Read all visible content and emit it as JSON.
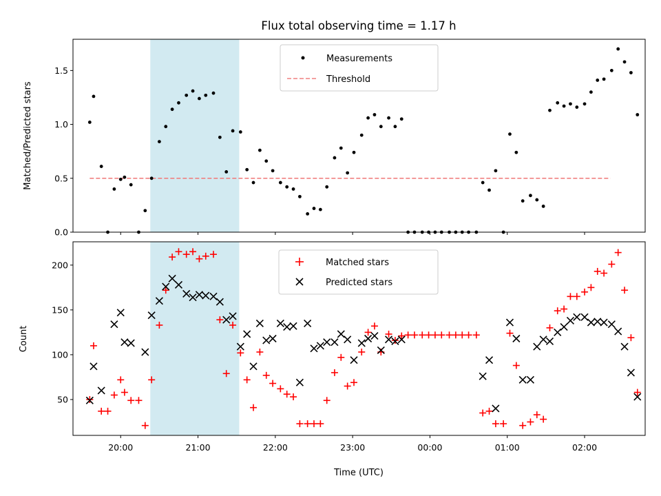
{
  "figure": {
    "title": "Flux total observing time = 1.17 h"
  },
  "colors": {
    "measurement": "#000000",
    "threshold": "#f08080",
    "matched": "#ff0000",
    "predicted": "#000000",
    "highlight": "#add8e6"
  },
  "chart_data": [
    {
      "type": "scatter",
      "panel": "top",
      "ylabel": "Matched/Predicted stars",
      "xlabel": "",
      "ylim": [
        0,
        1.79
      ],
      "yticks": [
        0.0,
        0.5,
        1.0,
        1.5
      ],
      "ytick_labels": [
        "0.0",
        "0.5",
        "1.0",
        "1.5"
      ],
      "xlim": [
        "19:23",
        "02:47"
      ],
      "xticks": [
        "20:00",
        "21:00",
        "22:00",
        "23:00",
        "00:00",
        "01:00",
        "02:00"
      ],
      "highlight_span": [
        "20:23",
        "21:32"
      ],
      "legend": {
        "position": "top-center",
        "entries": [
          "Measurements",
          "Threshold"
        ]
      },
      "threshold": {
        "name": "Threshold",
        "y": 0.5,
        "x": [
          "19:36",
          "02:20"
        ]
      },
      "series": [
        {
          "name": "Measurements",
          "marker": "dot",
          "points": [
            [
              "19:36",
              1.02
            ],
            [
              "19:39",
              1.26
            ],
            [
              "19:45",
              0.61
            ],
            [
              "19:50",
              0.0
            ],
            [
              "19:55",
              0.4
            ],
            [
              "20:00",
              0.49
            ],
            [
              "20:03",
              0.51
            ],
            [
              "20:08",
              0.44
            ],
            [
              "20:14",
              0.0
            ],
            [
              "20:19",
              0.2
            ],
            [
              "20:24",
              0.5
            ],
            [
              "20:30",
              0.84
            ],
            [
              "20:35",
              0.98
            ],
            [
              "20:40",
              1.14
            ],
            [
              "20:45",
              1.2
            ],
            [
              "20:51",
              1.27
            ],
            [
              "20:56",
              1.31
            ],
            [
              "21:01",
              1.24
            ],
            [
              "21:06",
              1.27
            ],
            [
              "21:12",
              1.29
            ],
            [
              "21:17",
              0.88
            ],
            [
              "21:22",
              0.56
            ],
            [
              "21:27",
              0.94
            ],
            [
              "21:33",
              0.93
            ],
            [
              "21:38",
              0.58
            ],
            [
              "21:43",
              0.46
            ],
            [
              "21:48",
              0.76
            ],
            [
              "21:53",
              0.66
            ],
            [
              "21:58",
              0.57
            ],
            [
              "22:04",
              0.46
            ],
            [
              "22:09",
              0.42
            ],
            [
              "22:14",
              0.4
            ],
            [
              "22:19",
              0.33
            ],
            [
              "22:25",
              0.17
            ],
            [
              "22:30",
              0.22
            ],
            [
              "22:35",
              0.21
            ],
            [
              "22:40",
              0.42
            ],
            [
              "22:46",
              0.69
            ],
            [
              "22:51",
              0.78
            ],
            [
              "22:56",
              0.55
            ],
            [
              "23:01",
              0.74
            ],
            [
              "23:07",
              0.9
            ],
            [
              "23:12",
              1.06
            ],
            [
              "23:17",
              1.09
            ],
            [
              "23:22",
              0.98
            ],
            [
              "23:28",
              1.06
            ],
            [
              "23:33",
              0.98
            ],
            [
              "23:38",
              1.05
            ],
            [
              "23:43",
              0.0
            ],
            [
              "23:48",
              0.0
            ],
            [
              "23:54",
              0.0
            ],
            [
              "23:59",
              0.0
            ],
            [
              "00:04",
              0.0
            ],
            [
              "00:09",
              0.0
            ],
            [
              "00:15",
              0.0
            ],
            [
              "00:20",
              0.0
            ],
            [
              "00:25",
              0.0
            ],
            [
              "00:30",
              0.0
            ],
            [
              "00:36",
              0.0
            ],
            [
              "00:41",
              0.46
            ],
            [
              "00:46",
              0.39
            ],
            [
              "00:51",
              0.57
            ],
            [
              "00:57",
              0.0
            ],
            [
              "01:02",
              0.91
            ],
            [
              "01:07",
              0.74
            ],
            [
              "01:12",
              0.29
            ],
            [
              "01:18",
              0.34
            ],
            [
              "01:23",
              0.3
            ],
            [
              "01:28",
              0.24
            ],
            [
              "01:33",
              1.13
            ],
            [
              "01:39",
              1.2
            ],
            [
              "01:44",
              1.17
            ],
            [
              "01:49",
              1.19
            ],
            [
              "01:54",
              1.16
            ],
            [
              "02:00",
              1.19
            ],
            [
              "02:05",
              1.3
            ],
            [
              "02:10",
              1.41
            ],
            [
              "02:15",
              1.42
            ],
            [
              "02:21",
              1.5
            ],
            [
              "02:26",
              1.7
            ],
            [
              "02:31",
              1.58
            ],
            [
              "02:36",
              1.48
            ],
            [
              "02:41",
              1.09
            ]
          ]
        }
      ]
    },
    {
      "type": "scatter",
      "panel": "bottom",
      "ylabel": "Count",
      "xlabel": "Time (UTC)",
      "ylim": [
        10,
        226
      ],
      "yticks": [
        50,
        100,
        150,
        200
      ],
      "ytick_labels": [
        "50",
        "100",
        "150",
        "200"
      ],
      "xlim": [
        "19:23",
        "02:47"
      ],
      "xticks": [
        "20:00",
        "21:00",
        "22:00",
        "23:00",
        "00:00",
        "01:00",
        "02:00"
      ],
      "xtick_labels": [
        "20:00",
        "21:00",
        "22:00",
        "23:00",
        "00:00",
        "01:00",
        "02:00"
      ],
      "highlight_span": [
        "20:23",
        "21:32"
      ],
      "legend": {
        "position": "top-center",
        "entries": [
          "Matched stars",
          "Predicted stars"
        ]
      },
      "series": [
        {
          "name": "Matched stars",
          "marker": "plus",
          "points": [
            [
              "19:36",
              50
            ],
            [
              "19:39",
              110
            ],
            [
              "19:45",
              37
            ],
            [
              "19:50",
              37
            ],
            [
              "19:55",
              55
            ],
            [
              "20:00",
              72
            ],
            [
              "20:03",
              58
            ],
            [
              "20:08",
              49
            ],
            [
              "20:14",
              49
            ],
            [
              "20:19",
              21
            ],
            [
              "20:24",
              72
            ],
            [
              "20:30",
              133
            ],
            [
              "20:35",
              172
            ],
            [
              "20:40",
              209
            ],
            [
              "20:45",
              215
            ],
            [
              "20:51",
              212
            ],
            [
              "20:56",
              215
            ],
            [
              "21:01",
              207
            ],
            [
              "21:06",
              210
            ],
            [
              "21:12",
              212
            ],
            [
              "21:17",
              139
            ],
            [
              "21:22",
              79
            ],
            [
              "21:27",
              133
            ],
            [
              "21:33",
              102
            ],
            [
              "21:38",
              72
            ],
            [
              "21:43",
              41
            ],
            [
              "21:48",
              103
            ],
            [
              "21:53",
              77
            ],
            [
              "21:58",
              68
            ],
            [
              "22:04",
              62
            ],
            [
              "22:09",
              56
            ],
            [
              "22:14",
              53
            ],
            [
              "22:19",
              23
            ],
            [
              "22:25",
              23
            ],
            [
              "22:30",
              23
            ],
            [
              "22:35",
              23
            ],
            [
              "22:40",
              49
            ],
            [
              "22:46",
              80
            ],
            [
              "22:51",
              97
            ],
            [
              "22:56",
              65
            ],
            [
              "23:01",
              69
            ],
            [
              "23:07",
              103
            ],
            [
              "23:12",
              125
            ],
            [
              "23:17",
              132
            ],
            [
              "23:22",
              103
            ],
            [
              "23:28",
              123
            ],
            [
              "23:33",
              116
            ],
            [
              "23:38",
              121
            ],
            [
              "23:43",
              122
            ],
            [
              "23:48",
              122
            ],
            [
              "23:54",
              122
            ],
            [
              "23:59",
              122
            ],
            [
              "00:04",
              122
            ],
            [
              "00:09",
              122
            ],
            [
              "00:15",
              122
            ],
            [
              "00:20",
              122
            ],
            [
              "00:25",
              122
            ],
            [
              "00:30",
              122
            ],
            [
              "00:36",
              122
            ],
            [
              "00:41",
              35
            ],
            [
              "00:46",
              37
            ],
            [
              "00:51",
              23
            ],
            [
              "00:57",
              23
            ],
            [
              "01:02",
              124
            ],
            [
              "01:07",
              88
            ],
            [
              "01:12",
              21
            ],
            [
              "01:18",
              25
            ],
            [
              "01:23",
              33
            ],
            [
              "01:28",
              28
            ],
            [
              "01:33",
              130
            ],
            [
              "01:39",
              149
            ],
            [
              "01:44",
              151
            ],
            [
              "01:49",
              165
            ],
            [
              "01:54",
              165
            ],
            [
              "02:00",
              170
            ],
            [
              "02:05",
              175
            ],
            [
              "02:10",
              193
            ],
            [
              "02:15",
              191
            ],
            [
              "02:21",
              201
            ],
            [
              "02:26",
              214
            ],
            [
              "02:31",
              172
            ],
            [
              "02:36",
              119
            ],
            [
              "02:41",
              58
            ]
          ]
        },
        {
          "name": "Predicted stars",
          "marker": "x",
          "points": [
            [
              "19:36",
              49
            ],
            [
              "19:39",
              87
            ],
            [
              "19:45",
              60
            ],
            [
              "19:55",
              134
            ],
            [
              "20:00",
              147
            ],
            [
              "20:03",
              114
            ],
            [
              "20:08",
              113
            ],
            [
              "20:19",
              103
            ],
            [
              "20:24",
              144
            ],
            [
              "20:30",
              160
            ],
            [
              "20:35",
              176
            ],
            [
              "20:40",
              185
            ],
            [
              "20:45",
              178
            ],
            [
              "20:51",
              168
            ],
            [
              "20:56",
              164
            ],
            [
              "21:01",
              167
            ],
            [
              "21:06",
              166
            ],
            [
              "21:12",
              165
            ],
            [
              "21:17",
              159
            ],
            [
              "21:22",
              139
            ],
            [
              "21:27",
              143
            ],
            [
              "21:33",
              109
            ],
            [
              "21:38",
              123
            ],
            [
              "21:43",
              87
            ],
            [
              "21:48",
              135
            ],
            [
              "21:53",
              116
            ],
            [
              "21:58",
              118
            ],
            [
              "22:04",
              135
            ],
            [
              "22:09",
              131
            ],
            [
              "22:14",
              132
            ],
            [
              "22:19",
              69
            ],
            [
              "22:25",
              135
            ],
            [
              "22:30",
              107
            ],
            [
              "22:35",
              110
            ],
            [
              "22:40",
              114
            ],
            [
              "22:46",
              114
            ],
            [
              "22:51",
              123
            ],
            [
              "22:56",
              117
            ],
            [
              "23:01",
              94
            ],
            [
              "23:07",
              113
            ],
            [
              "23:12",
              118
            ],
            [
              "23:17",
              121
            ],
            [
              "23:22",
              105
            ],
            [
              "23:28",
              117
            ],
            [
              "23:33",
              115
            ],
            [
              "23:38",
              117
            ],
            [
              "00:41",
              76
            ],
            [
              "00:46",
              94
            ],
            [
              "00:51",
              40
            ],
            [
              "01:02",
              136
            ],
            [
              "01:07",
              118
            ],
            [
              "01:12",
              72
            ],
            [
              "01:18",
              72
            ],
            [
              "01:23",
              109
            ],
            [
              "01:28",
              117
            ],
            [
              "01:33",
              115
            ],
            [
              "01:39",
              125
            ],
            [
              "01:44",
              131
            ],
            [
              "01:49",
              138
            ],
            [
              "01:54",
              142
            ],
            [
              "02:00",
              142
            ],
            [
              "02:05",
              136
            ],
            [
              "02:10",
              137
            ],
            [
              "02:15",
              136
            ],
            [
              "02:21",
              134
            ],
            [
              "02:26",
              126
            ],
            [
              "02:31",
              109
            ],
            [
              "02:36",
              80
            ],
            [
              "02:41",
              53
            ]
          ]
        }
      ]
    }
  ]
}
